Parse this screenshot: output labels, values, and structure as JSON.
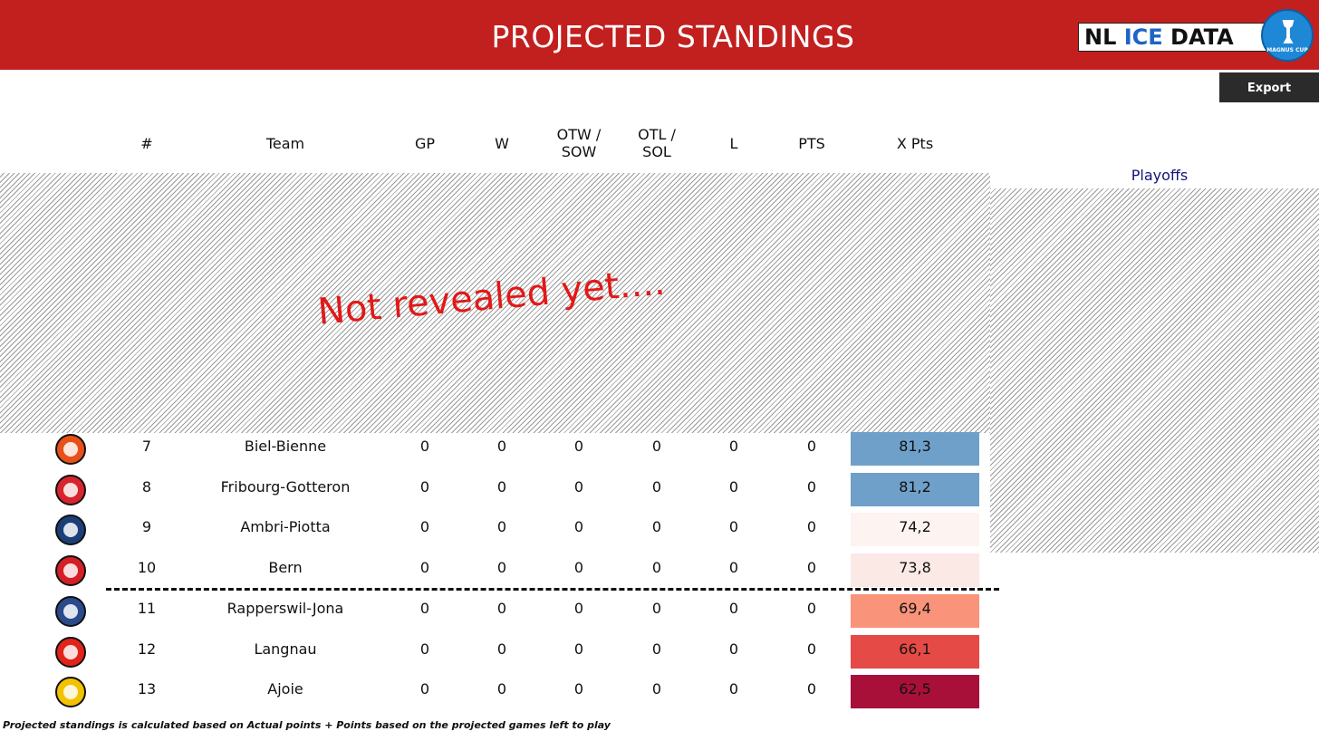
{
  "header": {
    "title": "PROJECTED STANDINGS"
  },
  "brand": {
    "logo_prefix": "NL ",
    "logo_accent": "ICE",
    "logo_suffix": " DATA",
    "cup_label": "MAGNUS CUP"
  },
  "toolbar": {
    "export_label": "Export"
  },
  "columns": {
    "rank": "#",
    "team": "Team",
    "gp": "GP",
    "w": "W",
    "otw_line1": "OTW /",
    "otw_line2": "SOW",
    "otl_line1": "OTL /",
    "otl_line2": "SOL",
    "l": "L",
    "pts": "PTS",
    "xpts": "X Pts"
  },
  "playoffs_label": "Playoffs",
  "overlay_text": "Not revealed yet....",
  "rows": [
    {
      "rank": "7",
      "team": "Biel-Bienne",
      "gp": "0",
      "w": "0",
      "otw": "0",
      "otl": "0",
      "l": "0",
      "pts": "0",
      "xpts": "81,3",
      "xpts_color": "#6fa0c9",
      "logo_icon": "biel-bienne-logo-icon",
      "logo_color": "#e8501a"
    },
    {
      "rank": "8",
      "team": "Fribourg-Gotteron",
      "gp": "0",
      "w": "0",
      "otw": "0",
      "otl": "0",
      "l": "0",
      "pts": "0",
      "xpts": "81,2",
      "xpts_color": "#6fa0c9",
      "logo_icon": "fribourg-gotteron-logo-icon",
      "logo_color": "#d8242c"
    },
    {
      "rank": "9",
      "team": "Ambri-Piotta",
      "gp": "0",
      "w": "0",
      "otw": "0",
      "otl": "0",
      "l": "0",
      "pts": "0",
      "xpts": "74,2",
      "xpts_color": "#fdf3f1",
      "logo_icon": "ambri-piotta-logo-icon",
      "logo_color": "#1d3f78"
    },
    {
      "rank": "10",
      "team": "Bern",
      "gp": "0",
      "w": "0",
      "otw": "0",
      "otl": "0",
      "l": "0",
      "pts": "0",
      "xpts": "73,8",
      "xpts_color": "#fbe9e6",
      "logo_icon": "bern-logo-icon",
      "logo_color": "#d51f26"
    },
    {
      "rank": "11",
      "team": "Rapperswil-Jona",
      "gp": "0",
      "w": "0",
      "otw": "0",
      "otl": "0",
      "l": "0",
      "pts": "0",
      "xpts": "69,4",
      "xpts_color": "#f9937a",
      "logo_icon": "rapperswil-jona-logo-icon",
      "logo_color": "#2a4a8c"
    },
    {
      "rank": "12",
      "team": "Langnau",
      "gp": "0",
      "w": "0",
      "otw": "0",
      "otl": "0",
      "l": "0",
      "pts": "0",
      "xpts": "66,1",
      "xpts_color": "#e64a46",
      "logo_icon": "langnau-logo-icon",
      "logo_color": "#e2231a"
    },
    {
      "rank": "13",
      "team": "Ajoie",
      "gp": "0",
      "w": "0",
      "otw": "0",
      "otl": "0",
      "l": "0",
      "pts": "0",
      "xpts": "62,5",
      "xpts_color": "#a8103a",
      "logo_icon": "ajoie-logo-icon",
      "logo_color": "#f2c200"
    }
  ],
  "footnote": "Projected standings is calculated based on Actual points + Points based on the projected games left to play"
}
